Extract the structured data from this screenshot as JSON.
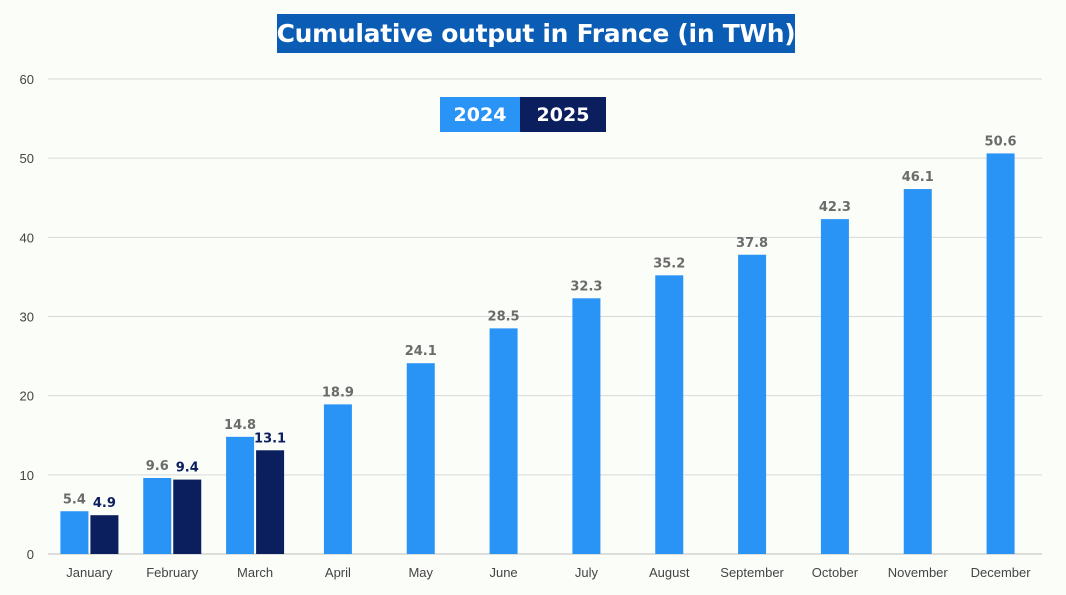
{
  "chart_data": {
    "type": "bar",
    "title": "Cumulative output in France (in TWh)",
    "xlabel": "",
    "ylabel": "",
    "ylim": [
      0,
      60
    ],
    "yticks": [
      0,
      10,
      20,
      30,
      40,
      50,
      60
    ],
    "grid": true,
    "legend_position": "top-center",
    "categories": [
      "January",
      "February",
      "March",
      "April",
      "May",
      "June",
      "July",
      "August",
      "September",
      "October",
      "November",
      "December"
    ],
    "series": [
      {
        "name": "2024",
        "color": "#2a93f6",
        "label_color": "#6b6b6b",
        "values": [
          5.4,
          9.6,
          14.8,
          18.9,
          24.1,
          28.5,
          32.3,
          35.2,
          37.8,
          42.3,
          46.1,
          50.6
        ]
      },
      {
        "name": "2025",
        "color": "#0b1e5e",
        "label_color": "#0b1e5e",
        "values": [
          4.9,
          9.4,
          13.1,
          null,
          null,
          null,
          null,
          null,
          null,
          null,
          null,
          null
        ]
      }
    ]
  }
}
